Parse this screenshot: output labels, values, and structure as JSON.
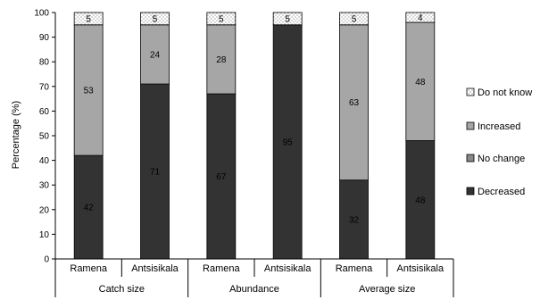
{
  "chart_data": {
    "type": "bar",
    "stacked": true,
    "ylabel": "Percentage (%)",
    "ylim": [
      0,
      100
    ],
    "yticks": [
      0,
      10,
      20,
      30,
      40,
      50,
      60,
      70,
      80,
      90,
      100
    ],
    "grid": false,
    "legend_position": "right",
    "groups": [
      "Catch size",
      "Abundance",
      "Average size"
    ],
    "categories": [
      "Ramena",
      "Antsisikala",
      "Ramena",
      "Antsisikala",
      "Ramena",
      "Antsisikala"
    ],
    "series": [
      {
        "name": "Decreased",
        "color": "#333333",
        "values": [
          42,
          71,
          67,
          95,
          32,
          48
        ],
        "labels": [
          "42",
          "71",
          "67",
          "95",
          "32",
          "48"
        ]
      },
      {
        "name": "No change",
        "color": "#888888",
        "values": [
          0,
          0,
          0,
          0,
          0,
          0
        ],
        "labels": [
          "",
          "",
          "",
          "",
          "",
          ""
        ]
      },
      {
        "name": "Increased",
        "color": "#a6a6a6",
        "values": [
          53,
          24,
          28,
          0,
          63,
          48
        ],
        "labels": [
          "53",
          "24",
          "28",
          "",
          "63",
          "48"
        ]
      },
      {
        "name": "Do not know",
        "color": "#ffffff",
        "pattern": "dots",
        "values": [
          5,
          5,
          5,
          5,
          5,
          4
        ],
        "labels": [
          "5",
          "5",
          "5",
          "5",
          "5",
          "4"
        ]
      }
    ],
    "legend_order": [
      "Do not know",
      "Increased",
      "No change",
      "Decreased"
    ]
  }
}
